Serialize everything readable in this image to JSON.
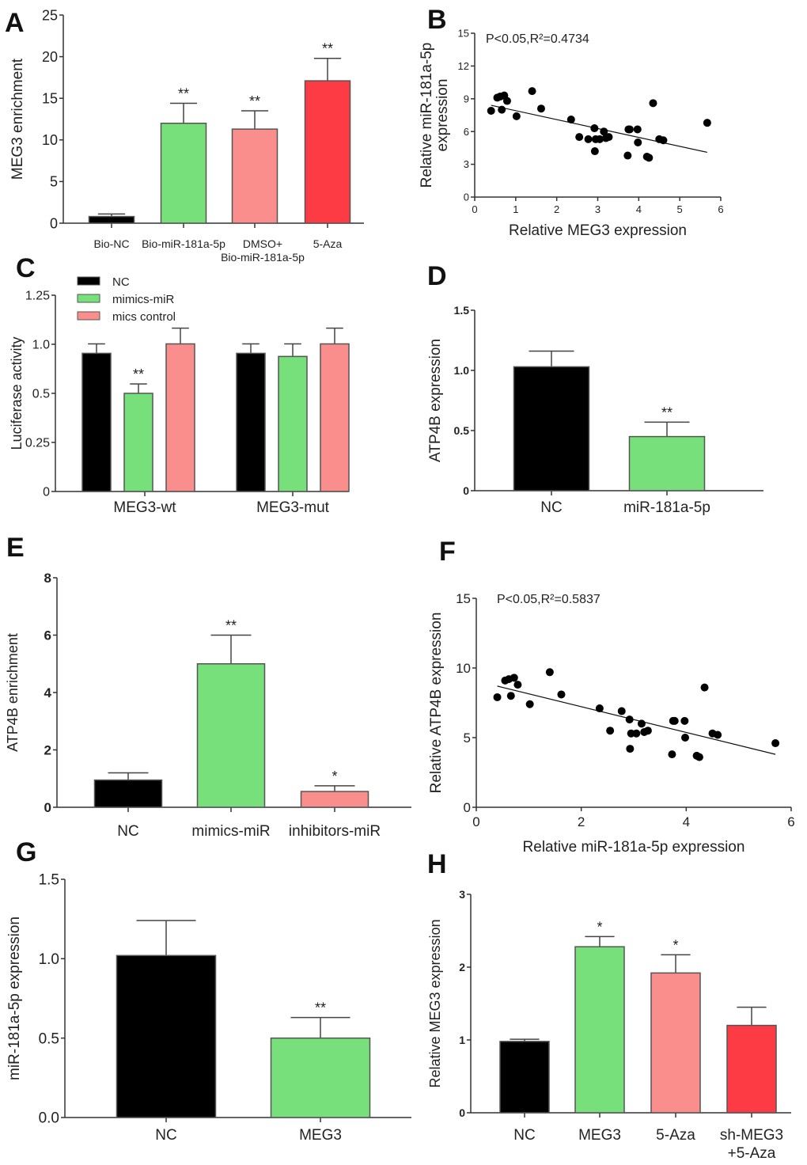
{
  "colors": {
    "black": "#000000",
    "green": "#77e07a",
    "pink": "#f98e8c",
    "red": "#fd3b45"
  },
  "chart_data": [
    {
      "panel": "A",
      "type": "bar",
      "ylabel": "MEG3 enrichment",
      "ylim": [
        0,
        25
      ],
      "yticks": [
        "0",
        "5",
        "10",
        "15",
        "20",
        "25"
      ],
      "categories": [
        [
          "Bio-NC"
        ],
        [
          "Bio-miR-181a-5p"
        ],
        [
          "DMSO+",
          "Bio-miR-181a-5p"
        ],
        [
          "5-Aza"
        ]
      ],
      "values": [
        0.8,
        12.0,
        11.3,
        17.1
      ],
      "errors": [
        0.3,
        2.4,
        2.2,
        2.7
      ],
      "stars": [
        "",
        "**",
        "**",
        "**"
      ],
      "colors": [
        "#000000",
        "#77e07a",
        "#f98e8c",
        "#fd3b45"
      ]
    },
    {
      "panel": "B",
      "type": "scatter",
      "ylabel": [
        "Relative miR-181a-5p",
        "expression"
      ],
      "xlabel": "Relative MEG3 expression",
      "xlim": [
        0,
        6
      ],
      "ylim": [
        0,
        15
      ],
      "xticks": [
        "0",
        "1",
        "2",
        "3",
        "4",
        "5",
        "6"
      ],
      "yticks": [
        "0",
        "3",
        "6",
        "9",
        "12",
        "15"
      ],
      "annotation": "P<0.05,R²=0.4734",
      "points": [
        [
          0.4,
          7.9
        ],
        [
          0.55,
          9.1
        ],
        [
          0.62,
          9.2
        ],
        [
          0.72,
          9.3
        ],
        [
          0.66,
          8.0
        ],
        [
          0.79,
          8.8
        ],
        [
          1.02,
          7.4
        ],
        [
          1.4,
          9.7
        ],
        [
          1.62,
          8.1
        ],
        [
          2.35,
          7.1
        ],
        [
          2.55,
          5.5
        ],
        [
          2.77,
          5.3
        ],
        [
          2.92,
          6.3
        ],
        [
          2.95,
          5.3
        ],
        [
          2.93,
          4.2
        ],
        [
          3.05,
          5.3
        ],
        [
          3.15,
          6.0
        ],
        [
          3.2,
          5.4
        ],
        [
          3.27,
          5.5
        ],
        [
          3.73,
          3.8
        ],
        [
          3.75,
          6.2
        ],
        [
          3.78,
          6.2
        ],
        [
          3.97,
          6.2
        ],
        [
          3.98,
          5.0
        ],
        [
          4.2,
          3.7
        ],
        [
          4.25,
          3.6
        ],
        [
          4.35,
          8.6
        ],
        [
          4.5,
          5.3
        ],
        [
          4.6,
          5.2
        ],
        [
          5.67,
          6.8
        ]
      ],
      "trendline": [
        [
          0.4,
          8.4
        ],
        [
          5.67,
          4.1
        ]
      ]
    },
    {
      "panel": "C",
      "type": "bar",
      "ylabel": "Luciferase activity",
      "ylim": [
        0,
        1.25
      ],
      "yticks": [
        "0",
        "0.25",
        "0.5",
        "1.0",
        "1.25"
      ],
      "categories": [
        [
          "MEG3-wt"
        ],
        [
          "MEG3-mut"
        ]
      ],
      "legend": [
        "NC",
        "mimics-miR",
        "mics control"
      ],
      "legend_position": "top-left",
      "series": [
        {
          "name": "NC",
          "color": "#000000",
          "values": [
            0.88,
            0.88
          ],
          "errors": [
            0.06,
            0.06
          ],
          "stars": [
            "",
            ""
          ]
        },
        {
          "name": "mimics-miR",
          "color": "#77e07a",
          "values": [
            0.625,
            0.86
          ],
          "errors": [
            0.06,
            0.08
          ],
          "stars": [
            "**",
            ""
          ]
        },
        {
          "name": "mics control",
          "color": "#f98e8c",
          "values": [
            0.94,
            0.94
          ],
          "errors": [
            0.1,
            0.1
          ],
          "stars": [
            "",
            ""
          ]
        }
      ]
    },
    {
      "panel": "D",
      "type": "bar",
      "ylabel": "ATP4B  expression",
      "ylim": [
        0,
        1.5
      ],
      "yticks": [
        "0",
        "0.5",
        "1.0",
        "1.5"
      ],
      "categories": [
        [
          "NC"
        ],
        [
          "miR-181a-5p"
        ]
      ],
      "values": [
        1.03,
        0.45
      ],
      "errors": [
        0.13,
        0.12
      ],
      "stars": [
        "",
        "**"
      ],
      "colors": [
        "#000000",
        "#77e07a"
      ]
    },
    {
      "panel": "E",
      "type": "bar",
      "ylabel": "ATP4B enrichment",
      "ylim": [
        0,
        8
      ],
      "yticks": [
        "0",
        "2",
        "4",
        "6",
        "8"
      ],
      "categories": [
        [
          "NC"
        ],
        [
          "mimics-miR"
        ],
        [
          "inhibitors-miR"
        ]
      ],
      "values": [
        0.95,
        5.0,
        0.55
      ],
      "errors": [
        0.25,
        1.0,
        0.2
      ],
      "stars": [
        "",
        "**",
        "*"
      ],
      "colors": [
        "#000000",
        "#77e07a",
        "#f98e8c"
      ]
    },
    {
      "panel": "F",
      "type": "scatter",
      "ylabel": [
        "Relative ATP4B expression"
      ],
      "xlabel": "Relative miR-181a-5p expression",
      "xlim": [
        0,
        6
      ],
      "ylim": [
        0,
        15
      ],
      "xticks": [
        "0",
        "2",
        "4",
        "6"
      ],
      "yticks": [
        "0",
        "5",
        "10",
        "15"
      ],
      "annotation": "P<0.05,R²=0.5837",
      "points": [
        [
          0.4,
          7.9
        ],
        [
          0.55,
          9.1
        ],
        [
          0.62,
          9.2
        ],
        [
          0.72,
          9.3
        ],
        [
          0.66,
          8.0
        ],
        [
          0.79,
          8.8
        ],
        [
          1.02,
          7.4
        ],
        [
          1.4,
          9.7
        ],
        [
          1.62,
          8.1
        ],
        [
          2.35,
          7.1
        ],
        [
          2.55,
          5.5
        ],
        [
          2.77,
          6.9
        ],
        [
          2.92,
          6.3
        ],
        [
          2.95,
          5.3
        ],
        [
          2.93,
          4.2
        ],
        [
          3.05,
          5.3
        ],
        [
          3.15,
          6.0
        ],
        [
          3.2,
          5.4
        ],
        [
          3.27,
          5.5
        ],
        [
          3.73,
          3.8
        ],
        [
          3.75,
          6.2
        ],
        [
          3.78,
          6.2
        ],
        [
          3.97,
          6.2
        ],
        [
          3.98,
          5.0
        ],
        [
          4.2,
          3.7
        ],
        [
          4.25,
          3.6
        ],
        [
          4.35,
          8.6
        ],
        [
          4.5,
          5.3
        ],
        [
          4.6,
          5.2
        ],
        [
          5.7,
          4.6
        ]
      ],
      "trendline": [
        [
          0.4,
          8.7
        ],
        [
          5.7,
          3.8
        ]
      ]
    },
    {
      "panel": "G",
      "type": "bar",
      "ylabel": "miR-181a-5p   expression",
      "ylim": [
        0,
        1.5
      ],
      "yticks": [
        "0.0",
        "0.5",
        "1.0",
        "1.5"
      ],
      "categories": [
        [
          "NC"
        ],
        [
          "MEG3"
        ]
      ],
      "values": [
        1.02,
        0.5
      ],
      "errors": [
        0.22,
        0.13
      ],
      "stars": [
        "",
        "**"
      ],
      "colors": [
        "#000000",
        "#77e07a"
      ]
    },
    {
      "panel": "H",
      "type": "bar",
      "ylabel": "Relative MEG3 expression",
      "ylim": [
        0,
        3
      ],
      "yticks": [
        "0",
        "1",
        "2",
        "3"
      ],
      "categories": [
        [
          "NC"
        ],
        [
          "MEG3"
        ],
        [
          "5-Aza"
        ],
        [
          "sh-MEG3",
          "+5-Aza"
        ]
      ],
      "values": [
        0.98,
        2.28,
        1.92,
        1.2
      ],
      "errors": [
        0.03,
        0.14,
        0.25,
        0.25
      ],
      "stars": [
        "",
        "*",
        "*",
        ""
      ],
      "colors": [
        "#000000",
        "#77e07a",
        "#f98e8c",
        "#fd3b45"
      ]
    }
  ]
}
